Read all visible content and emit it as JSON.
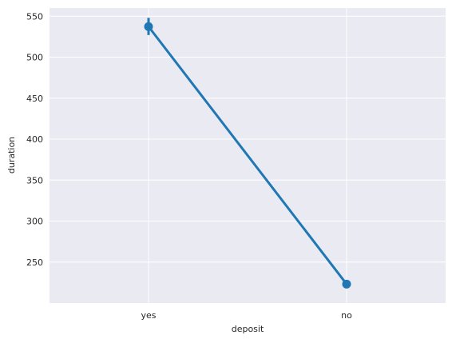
{
  "chart_data": {
    "type": "line",
    "categories": [
      "yes",
      "no"
    ],
    "series": [
      {
        "values": [
          537.3,
          223.1
        ],
        "ci_low": [
          527,
          218
        ],
        "ci_high": [
          548,
          228
        ]
      }
    ],
    "xlabel": "deposit",
    "ylabel": "duration",
    "ylim": [
      200,
      560
    ],
    "yticks": [
      250,
      300,
      350,
      400,
      450,
      500,
      550
    ],
    "grid": true,
    "colors": {
      "series": "#1f77b4",
      "background": "#eaeaf2",
      "grid": "#ffffff",
      "text": "#262626"
    }
  }
}
